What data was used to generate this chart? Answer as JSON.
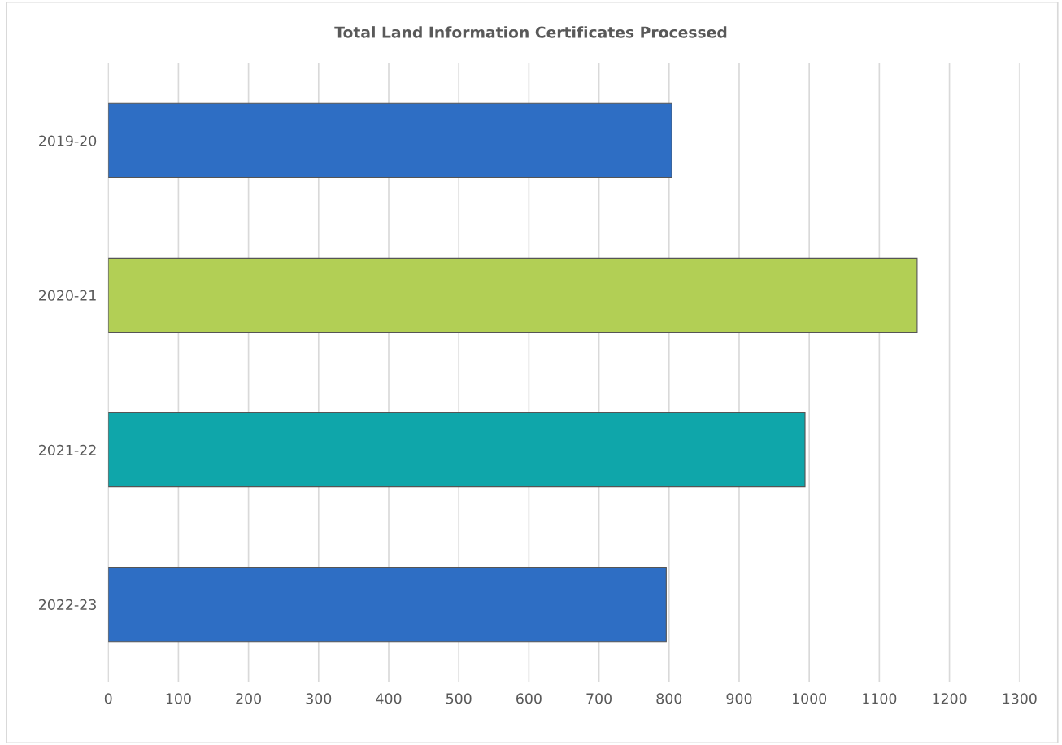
{
  "chart_data": {
    "type": "bar",
    "orientation": "horizontal",
    "title": "Total Land Information Certificates Processed",
    "categories": [
      "2019-20",
      "2020-21",
      "2021-22",
      "2022-23"
    ],
    "values": [
      804,
      1154,
      994,
      796
    ],
    "colors": [
      "#2e6ec4",
      "#b2cf55",
      "#0fa6aa",
      "#2e6ec4"
    ],
    "xlim": [
      0,
      1300
    ],
    "xticks": [
      0,
      100,
      200,
      300,
      400,
      500,
      600,
      700,
      800,
      900,
      1000,
      1100,
      1200,
      1300
    ],
    "grid": "x",
    "legend": false
  }
}
